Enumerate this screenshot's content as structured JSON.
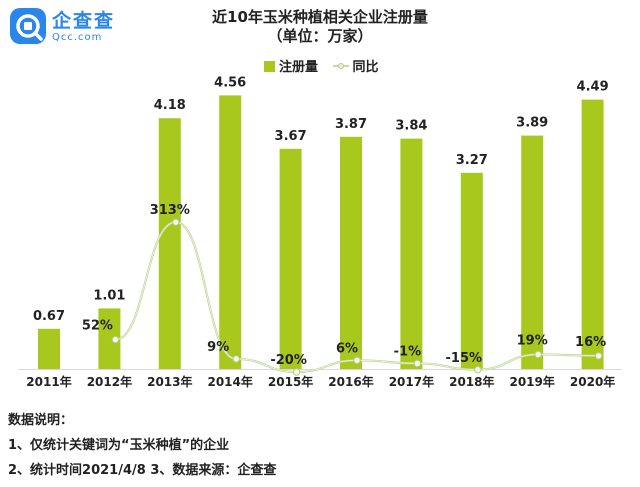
{
  "logo": {
    "name_cn": "企查查",
    "name_en": "Qcc.com",
    "icon": "qcc-logo-icon"
  },
  "header": {
    "title": "近10年玉米种植相关企业注册量",
    "subtitle": "（单位：万家）"
  },
  "legend": {
    "bar_label": "注册量",
    "line_label": "同比"
  },
  "chart_data": {
    "type": "bar",
    "categories": [
      "2011年",
      "2012年",
      "2013年",
      "2014年",
      "2015年",
      "2016年",
      "2017年",
      "2018年",
      "2019年",
      "2020年"
    ],
    "series": [
      {
        "name": "注册量",
        "type": "bar",
        "values": [
          0.67,
          1.01,
          4.18,
          4.56,
          3.67,
          3.87,
          3.84,
          3.27,
          3.89,
          4.49
        ],
        "labels": [
          "0.67",
          "1.01",
          "4.18",
          "4.56",
          "3.67",
          "3.87",
          "3.84",
          "3.27",
          "3.89",
          "4.49"
        ]
      },
      {
        "name": "同比",
        "type": "line",
        "values": [
          null,
          52,
          313,
          9,
          -20,
          6,
          -1,
          -15,
          19,
          16
        ],
        "labels": [
          "",
          "52%",
          "313%",
          "9%",
          "-20%",
          "6%",
          "-1%",
          "-15%",
          "19%",
          "16%"
        ]
      }
    ],
    "colors": {
      "bar": "#a8c81e",
      "line": "#c8d9a0"
    },
    "grid": false,
    "legend_position": "top-center"
  },
  "notes": {
    "heading": "数据说明：",
    "line1": "1、仅统计关键词为“玉米种植”的企业",
    "line2": "2、统计时间2021/4/8    3、数据来源：企查查"
  }
}
